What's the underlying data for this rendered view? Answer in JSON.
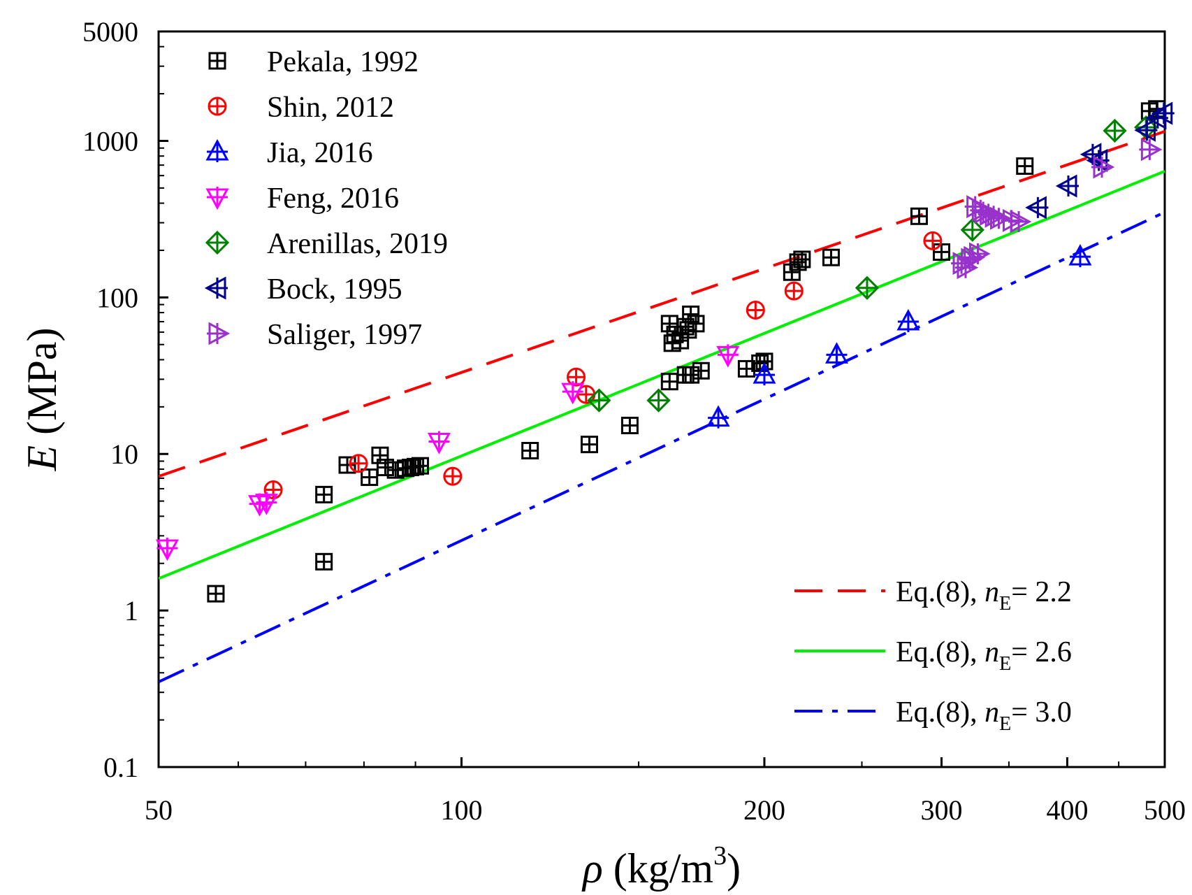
{
  "chart_data": {
    "type": "scatter",
    "title": "",
    "xscale": "log",
    "yscale": "log",
    "xlim": [
      50,
      500
    ],
    "ylim": [
      0.1,
      5000
    ],
    "x_ticks": [
      50,
      100,
      200,
      300,
      400,
      500
    ],
    "x_tick_labels": [
      "50",
      "100",
      "200",
      "300",
      "400",
      "500"
    ],
    "y_ticks": [
      0.1,
      1,
      10,
      100,
      1000,
      5000
    ],
    "y_tick_labels": [
      "0.1",
      "1",
      "10",
      "100",
      "1000",
      "5000"
    ],
    "xlabel": {
      "symbol": "ρ",
      "text": " (kg/m",
      "sup": "3",
      "close": ")"
    },
    "ylabel": {
      "symbol": "E",
      "text": " (MPa)"
    },
    "legend_placement": "top-left",
    "series": [
      {
        "name": "Pekala, 1992",
        "marker": "square-plus",
        "color": "#000000",
        "points": [
          [
            57,
            1.28
          ],
          [
            73,
            5.5
          ],
          [
            73,
            2.05
          ],
          [
            77,
            8.5
          ],
          [
            81,
            7.1
          ],
          [
            83,
            9.8
          ],
          [
            84,
            8.2
          ],
          [
            86,
            7.9
          ],
          [
            88,
            8.1
          ],
          [
            89,
            8.2
          ],
          [
            90,
            8.3
          ],
          [
            91,
            8.4
          ],
          [
            117,
            10.5
          ],
          [
            134,
            11.5
          ],
          [
            147,
            15.2
          ],
          [
            161,
            68
          ],
          [
            162,
            51
          ],
          [
            163,
            58
          ],
          [
            165,
            53
          ],
          [
            167,
            65
          ],
          [
            168,
            62
          ],
          [
            169,
            78
          ],
          [
            171,
            68
          ],
          [
            161,
            29
          ],
          [
            167,
            32
          ],
          [
            169,
            32
          ],
          [
            173,
            34
          ],
          [
            192,
            35
          ],
          [
            198,
            38
          ],
          [
            200,
            39
          ],
          [
            213,
            145
          ],
          [
            216,
            168
          ],
          [
            218,
            175
          ],
          [
            233,
            180
          ],
          [
            285,
            330
          ],
          [
            300,
            195
          ],
          [
            363,
            690
          ],
          [
            483,
            1550
          ],
          [
            491,
            1600
          ]
        ]
      },
      {
        "name": "Shin, 2012",
        "marker": "circle-plus",
        "color": "#ff0000",
        "points": [
          [
            65,
            5.9
          ],
          [
            79,
            8.7
          ],
          [
            98,
            7.2
          ],
          [
            130,
            31
          ],
          [
            133,
            24
          ],
          [
            196,
            83
          ],
          [
            214,
            110
          ],
          [
            294,
            230
          ]
        ]
      },
      {
        "name": "Jia, 2016",
        "marker": "triangle-up",
        "color": "#0000ff",
        "points": [
          [
            180,
            17
          ],
          [
            200,
            32
          ],
          [
            236,
            43
          ],
          [
            278,
            70
          ],
          [
            412,
            182
          ]
        ]
      },
      {
        "name": "Feng, 2016",
        "marker": "triangle-down",
        "color": "#ff00ff",
        "points": [
          [
            51,
            2.5
          ],
          [
            63,
            4.8
          ],
          [
            64,
            4.9
          ],
          [
            95,
            12
          ],
          [
            129,
            25
          ],
          [
            184,
            43
          ]
        ]
      },
      {
        "name": "Arenillas, 2019",
        "marker": "diamond-plus",
        "color": "#008000",
        "points": [
          [
            137,
            22
          ],
          [
            157,
            22
          ],
          [
            253,
            115
          ],
          [
            322,
            270
          ],
          [
            446,
            1160
          ],
          [
            479,
            1220
          ]
        ]
      },
      {
        "name": "Bock, 1995",
        "marker": "triangle-left",
        "color": "#00008b",
        "points": [
          [
            374,
            375
          ],
          [
            401,
            515
          ],
          [
            424,
            820
          ],
          [
            430,
            750
          ],
          [
            480,
            1170
          ],
          [
            492,
            1400
          ],
          [
            499,
            1500
          ]
        ]
      },
      {
        "name": "Saliger, 1997",
        "marker": "triangle-right",
        "color": "#9932cc",
        "points": [
          [
            314,
            165
          ],
          [
            317,
            155
          ],
          [
            320,
            175
          ],
          [
            322,
            180
          ],
          [
            326,
            190
          ],
          [
            324,
            380
          ],
          [
            328,
            360
          ],
          [
            330,
            350
          ],
          [
            334,
            340
          ],
          [
            338,
            330
          ],
          [
            342,
            320
          ],
          [
            352,
            310
          ],
          [
            358,
            305
          ],
          [
            433,
            680
          ],
          [
            483,
            880
          ]
        ]
      }
    ],
    "fit_lines": [
      {
        "name": "Eq.(8), n_E= 2.2",
        "label_prefix": "Eq.(8), ",
        "label_var": "n",
        "label_sub": "E",
        "label_suffix": "= 2.2",
        "style": "dashed",
        "color": "#ff0000",
        "points": [
          [
            50,
            7.2
          ],
          [
            500,
            1150
          ]
        ]
      },
      {
        "name": "Eq.(8), n_E= 2.6",
        "label_prefix": "Eq.(8), ",
        "label_var": "n",
        "label_sub": "E",
        "label_suffix": "= 2.6",
        "style": "solid",
        "color": "#00ee00",
        "points": [
          [
            50,
            1.6
          ],
          [
            500,
            640
          ]
        ]
      },
      {
        "name": "Eq.(8), n_E= 3.0",
        "label_prefix": "Eq.(8), ",
        "label_var": "n",
        "label_sub": "E",
        "label_suffix": "= 3.0",
        "style": "dash-dot",
        "color": "#0000ff",
        "points": [
          [
            50,
            0.35
          ],
          [
            500,
            350
          ]
        ]
      }
    ]
  }
}
